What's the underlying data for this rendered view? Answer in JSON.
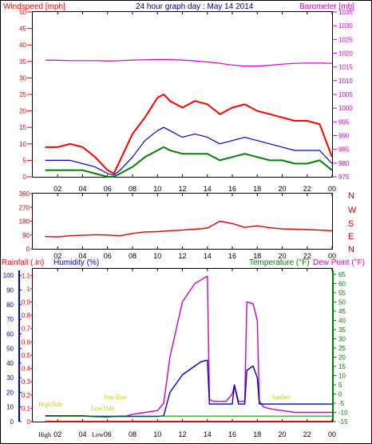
{
  "header": {
    "title": "24 hour graph day : May 14 2014",
    "left_label": "Windspeed [mph]",
    "right_label": "Barometer [mb]"
  },
  "wind_dir_labels": [
    "N",
    "W",
    "S",
    "E",
    "N"
  ],
  "bottom_header": {
    "rainfall_label": "Rainfall (.in)",
    "humidity_label": "Humidity (%)",
    "temperature_label": "Temperature (°F)",
    "dewpoint_label": "Dew Point (°F)"
  },
  "annotations": {
    "high_tide": "HighTide",
    "low_tide": "LowTide",
    "sun_rise": "Sun Rise",
    "sun_set": "SunSet",
    "bottom_high": "High",
    "bottom_low": "Low"
  },
  "colors": {
    "wind_gust": "#ff0000",
    "wind_avg": "#0000cc",
    "wind_speed": "#008000",
    "barometer": "#cc00cc",
    "wind_dir": "#dd0000",
    "rainfall": "#ff0000",
    "humidity": "#0000cc",
    "temperature": "#008000",
    "dewpoint": "#cc00cc",
    "annotation": "#cccc00"
  },
  "chart_data": [
    {
      "type": "line",
      "x": [
        "01:00",
        "02:00",
        "03:00",
        "04:00",
        "05:00",
        "06:00",
        "06:30",
        "07:00",
        "08:00",
        "09:00",
        "10:00",
        "10:30",
        "11:00",
        "12:00",
        "13:00",
        "14:00",
        "15:00",
        "16:00",
        "17:00",
        "18:00",
        "19:00",
        "20:00",
        "21:00",
        "22:00",
        "23:00",
        "00:00"
      ],
      "xticks": [
        "02",
        "04",
        "06",
        "08",
        "10",
        "12",
        "14",
        "16",
        "18",
        "20",
        "22",
        "00"
      ],
      "yticks_left": [
        0,
        5,
        10,
        15,
        20,
        25,
        30,
        35,
        40,
        45,
        50
      ],
      "yticks_right": [
        975,
        980,
        985,
        990,
        995,
        1000,
        1005,
        1010,
        1015,
        1020,
        1025,
        1030,
        1035
      ],
      "ylim_left": [
        0,
        50
      ],
      "ylim_right": [
        975,
        1035
      ],
      "series": [
        {
          "values": [
            9,
            9,
            10,
            9,
            6,
            2,
            1,
            5,
            13,
            18,
            24,
            25,
            23,
            21,
            23,
            22,
            19,
            21,
            22,
            20,
            19,
            18,
            17,
            17,
            16,
            6
          ]
        },
        {
          "values": [
            5,
            5,
            5,
            4,
            3,
            1,
            0.5,
            2,
            6,
            11,
            14,
            15,
            14,
            12,
            13,
            12,
            10,
            11,
            12,
            11,
            10,
            9,
            8,
            8,
            8,
            4
          ]
        },
        {
          "values": [
            2,
            2,
            2,
            2,
            1,
            0,
            0,
            1,
            3,
            6,
            8,
            9,
            8,
            7,
            7,
            7,
            5,
            6,
            7,
            6,
            5,
            5,
            4,
            4,
            5,
            2
          ]
        },
        {
          "values": [
            1017.5,
            1017.4,
            1017.3,
            1017.3,
            1017.3,
            1017.2,
            1017.2,
            1017.3,
            1017.5,
            1017.6,
            1017.7,
            1017.7,
            1017.7,
            1017.5,
            1017.2,
            1016.8,
            1016.3,
            1015.7,
            1015.3,
            1015.3,
            1015.6,
            1016.0,
            1016.3,
            1016.4,
            1016.4,
            1016.3
          ]
        }
      ]
    },
    {
      "type": "line",
      "x": [
        "01:00",
        "02:00",
        "03:00",
        "04:00",
        "05:00",
        "06:00",
        "07:00",
        "08:00",
        "09:00",
        "10:00",
        "11:00",
        "12:00",
        "13:00",
        "14:00",
        "15:00",
        "16:00",
        "17:00",
        "18:00",
        "19:00",
        "20:00",
        "21:00",
        "22:00",
        "23:00",
        "00:00"
      ],
      "xticks": [
        "02",
        "04",
        "06",
        "08",
        "10",
        "12",
        "14",
        "16",
        "18",
        "20",
        "22",
        "00"
      ],
      "yticks": [
        0,
        90,
        180,
        270,
        360
      ],
      "ylim": [
        0,
        360
      ],
      "series": [
        {
          "values": [
            80,
            78,
            85,
            88,
            92,
            90,
            85,
            100,
            110,
            112,
            118,
            122,
            128,
            135,
            180,
            165,
            140,
            150,
            138,
            130,
            128,
            125,
            122,
            118
          ]
        }
      ]
    },
    {
      "type": "line",
      "x": [
        "01:00",
        "02:00",
        "03:00",
        "04:00",
        "05:00",
        "06:00",
        "07:00",
        "07:30",
        "08:00",
        "09:00",
        "10:00",
        "10:30",
        "11:00",
        "12:00",
        "13:00",
        "13:30",
        "14:00",
        "14:10",
        "14:30",
        "15:00",
        "15:30",
        "16:00",
        "16:10",
        "16:30",
        "17:00",
        "17:10",
        "17:40",
        "18:00",
        "18:10",
        "18:30",
        "19:00",
        "20:00",
        "21:00",
        "22:00",
        "23:00",
        "00:00"
      ],
      "xticks": [
        "02",
        "04",
        "06",
        "08",
        "10",
        "12",
        "14",
        "16",
        "18",
        "20",
        "22",
        "00"
      ],
      "yticks_left": [
        0,
        0.1,
        0.2,
        0.3,
        0.4,
        0.5,
        0.6,
        0.7,
        0.8,
        0.9,
        1,
        1.1
      ],
      "yticks_hum": [
        0,
        10,
        20,
        30,
        40,
        50,
        60,
        70,
        80,
        90,
        100
      ],
      "yticks_right": [
        -15,
        -10,
        -5,
        0,
        5,
        10,
        15,
        20,
        25,
        30,
        35,
        40,
        45,
        50,
        55,
        60,
        65
      ],
      "ylim_left": [
        0,
        1.15
      ],
      "ylim_hum": [
        0,
        104.5
      ],
      "ylim_right": [
        -15,
        68
      ],
      "series": [
        {
          "values": [
            0,
            0,
            0,
            0,
            0,
            0,
            0,
            0,
            0,
            0,
            0,
            0,
            0,
            0,
            0,
            0,
            0,
            0,
            0,
            0,
            0,
            0,
            0,
            0,
            0,
            0,
            0,
            0,
            0,
            0,
            0,
            0,
            0,
            0,
            0,
            0
          ]
        },
        {
          "values": [
            4,
            4,
            4,
            4,
            3.5,
            3.5,
            3.5,
            3.5,
            3.5,
            3.5,
            3.5,
            4,
            20,
            32,
            38,
            41,
            42,
            12,
            12,
            12,
            12,
            12,
            25,
            12,
            12,
            35,
            38,
            30,
            12,
            12,
            12,
            12,
            12,
            12,
            12,
            12
          ]
        },
        {
          "values": [
            -12,
            -12,
            -12,
            -12,
            -12,
            -12,
            -12,
            -12,
            -12,
            -12,
            -12,
            -12,
            -12,
            -12,
            -12,
            -12,
            -12,
            -12,
            -12,
            -12,
            -12,
            -12,
            -12,
            -12,
            -12,
            -12,
            -12,
            -12,
            -12,
            -12,
            -12,
            -12,
            -12,
            -12,
            -12,
            -12
          ]
        },
        {
          "values": [
            -12,
            -12,
            -12,
            -12,
            -12.3,
            -12.5,
            -12,
            -12,
            -11,
            -10,
            -9,
            -5,
            20,
            50,
            60,
            62,
            64,
            -3,
            -4,
            -4,
            -4,
            0,
            5,
            -4,
            -4,
            50,
            49,
            40,
            -4,
            -7,
            -8,
            -9,
            -10,
            -10,
            -10,
            -10
          ]
        }
      ]
    }
  ]
}
